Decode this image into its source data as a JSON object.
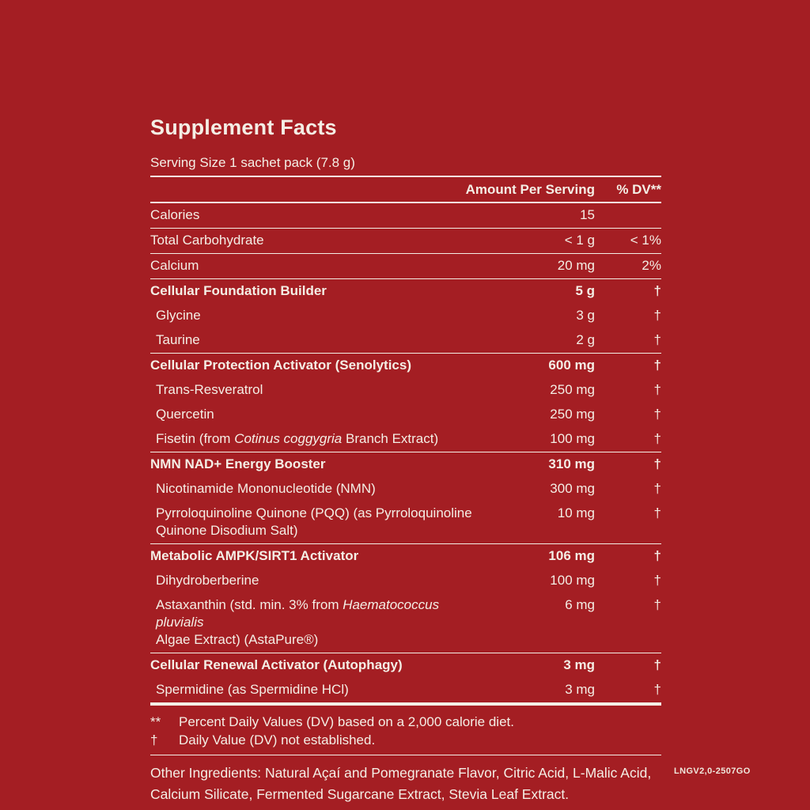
{
  "colors": {
    "background": "#A41E23",
    "ink": "#F4EEE5"
  },
  "label": {
    "title": "Supplement Facts",
    "serving_size": "Serving Size 1 sachet pack (7.8 g)"
  },
  "table": {
    "header": {
      "amount": "Amount Per Serving",
      "dv": "% DV**"
    },
    "rows": [
      {
        "lines": [
          [
            {
              "t": "Calories"
            }
          ]
        ],
        "amount": "15",
        "dv": "",
        "bold": false,
        "indent": false,
        "sep": "thin"
      },
      {
        "lines": [
          [
            {
              "t": "Total Carbohydrate"
            }
          ]
        ],
        "amount": "< 1 g",
        "dv": "< 1%",
        "bold": false,
        "indent": false,
        "sep": "thin"
      },
      {
        "lines": [
          [
            {
              "t": "Calcium"
            }
          ]
        ],
        "amount": "20 mg",
        "dv": "2%",
        "bold": false,
        "indent": false,
        "sep": "thin"
      },
      {
        "lines": [
          [
            {
              "t": "Cellular Foundation Builder"
            }
          ]
        ],
        "amount": "5 g",
        "dv": "†",
        "bold": true,
        "indent": false,
        "sep": "none"
      },
      {
        "lines": [
          [
            {
              "t": "Glycine"
            }
          ]
        ],
        "amount": "3 g",
        "dv": "†",
        "bold": false,
        "indent": true,
        "sep": "none"
      },
      {
        "lines": [
          [
            {
              "t": "Taurine"
            }
          ]
        ],
        "amount": "2 g",
        "dv": "†",
        "bold": false,
        "indent": true,
        "sep": "thin"
      },
      {
        "lines": [
          [
            {
              "t": "Cellular Protection Activator (Senolytics)"
            }
          ]
        ],
        "amount": "600 mg",
        "dv": "†",
        "bold": true,
        "indent": false,
        "sep": "none"
      },
      {
        "lines": [
          [
            {
              "t": "Trans-Resveratrol"
            }
          ]
        ],
        "amount": "250 mg",
        "dv": "†",
        "bold": false,
        "indent": true,
        "sep": "none"
      },
      {
        "lines": [
          [
            {
              "t": "Quercetin"
            }
          ]
        ],
        "amount": "250 mg",
        "dv": "†",
        "bold": false,
        "indent": true,
        "sep": "none"
      },
      {
        "lines": [
          [
            {
              "t": "Fisetin (from "
            },
            {
              "t": "Cotinus coggygria",
              "i": true
            },
            {
              "t": " Branch Extract)"
            }
          ]
        ],
        "amount": "100 mg",
        "dv": "†",
        "bold": false,
        "indent": true,
        "sep": "thin"
      },
      {
        "lines": [
          [
            {
              "t": "NMN NAD+ Energy Booster"
            }
          ]
        ],
        "amount": "310 mg",
        "dv": "†",
        "bold": true,
        "indent": false,
        "sep": "none"
      },
      {
        "lines": [
          [
            {
              "t": "Nicotinamide Mononucleotide (NMN)"
            }
          ]
        ],
        "amount": "300 mg",
        "dv": "†",
        "bold": false,
        "indent": true,
        "sep": "none"
      },
      {
        "lines": [
          [
            {
              "t": "Pyrroloquinoline Quinone (PQQ) (as Pyrroloquinoline"
            }
          ],
          [
            {
              "t": "Quinone Disodium Salt)"
            }
          ]
        ],
        "amount": "10 mg",
        "dv": "†",
        "bold": false,
        "indent": true,
        "sep": "thin"
      },
      {
        "lines": [
          [
            {
              "t": "Metabolic AMPK/SIRT1 Activator"
            }
          ]
        ],
        "amount": "106 mg",
        "dv": "†",
        "bold": true,
        "indent": false,
        "sep": "none"
      },
      {
        "lines": [
          [
            {
              "t": "Dihydroberberine"
            }
          ]
        ],
        "amount": "100 mg",
        "dv": "†",
        "bold": false,
        "indent": true,
        "sep": "none"
      },
      {
        "lines": [
          [
            {
              "t": "Astaxanthin (std. min. 3% from "
            },
            {
              "t": "Haematococcus pluvialis",
              "i": true
            }
          ],
          [
            {
              "t": "Algae Extract) (AstaPure®)"
            }
          ]
        ],
        "amount": "6 mg",
        "dv": "†",
        "bold": false,
        "indent": true,
        "sep": "thin"
      },
      {
        "lines": [
          [
            {
              "t": "Cellular Renewal Activator (Autophagy)"
            }
          ]
        ],
        "amount": "3 mg",
        "dv": "†",
        "bold": true,
        "indent": false,
        "sep": "none"
      },
      {
        "lines": [
          [
            {
              "t": "Spermidine (as Spermidine HCl)"
            }
          ]
        ],
        "amount": "3 mg",
        "dv": "†",
        "bold": false,
        "indent": true,
        "sep": "thick"
      }
    ]
  },
  "footnotes": [
    {
      "symbol": "**",
      "text": "Percent Daily Values (DV) based on a 2,000 calorie diet."
    },
    {
      "symbol": "†",
      "text": "Daily Value (DV) not established."
    }
  ],
  "other_ingredients": "Other Ingredients: Natural Açaí and Pomegranate Flavor, Citric Acid, L-Malic Acid, Calcium Silicate, Fermented Sugarcane Extract, Stevia Leaf Extract.",
  "product_code": "LNGV2,0-2507GO"
}
